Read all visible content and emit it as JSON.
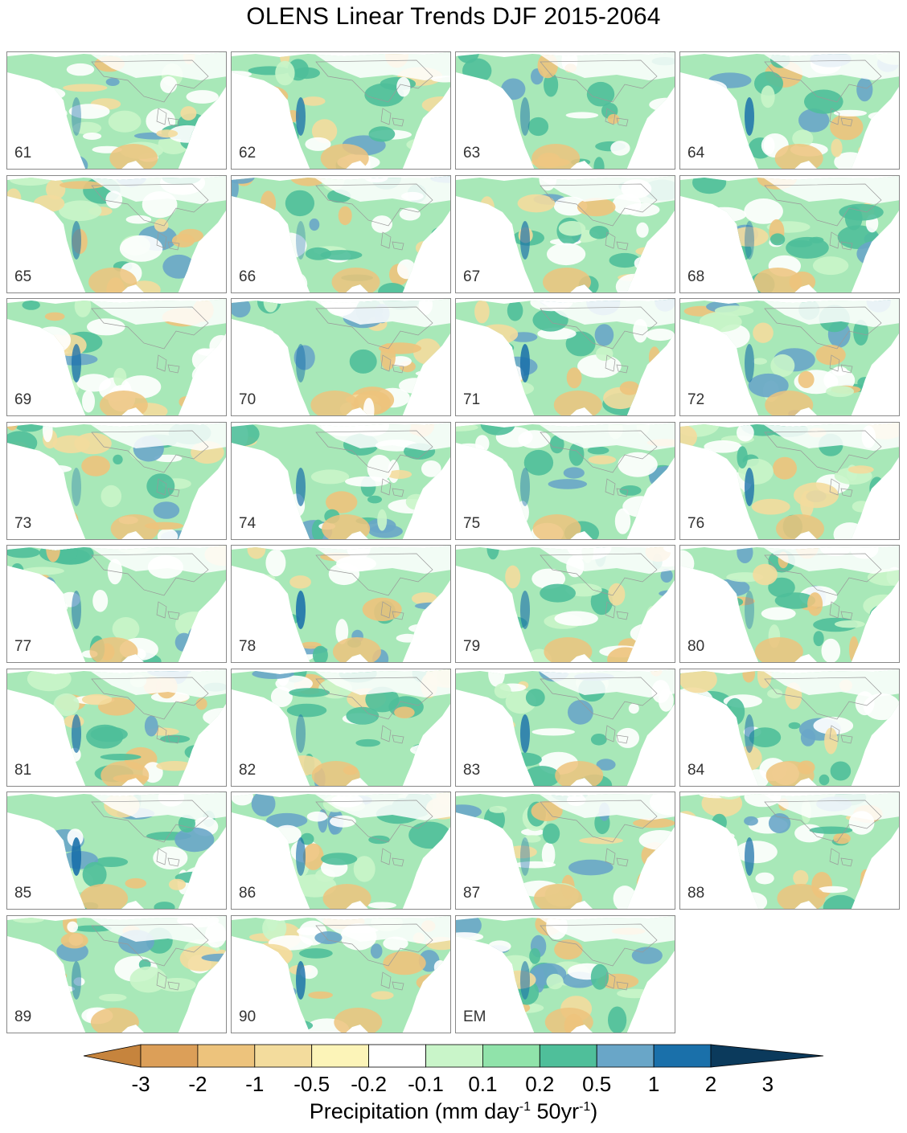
{
  "title": "OLENS Linear Trends DJF 2015-2064",
  "panels": [
    "61",
    "62",
    "63",
    "64",
    "65",
    "66",
    "67",
    "68",
    "69",
    "70",
    "71",
    "72",
    "73",
    "74",
    "75",
    "76",
    "77",
    "78",
    "79",
    "80",
    "81",
    "82",
    "83",
    "84",
    "85",
    "86",
    "87",
    "88",
    "89",
    "90",
    "EM"
  ],
  "colorbar": {
    "ticks": [
      "-3",
      "-2",
      "-1",
      "-0.5",
      "-0.2",
      "-0.1",
      "0.1",
      "0.2",
      "0.5",
      "1",
      "2",
      "3"
    ],
    "colors": [
      "#c6843d",
      "#dc9f58",
      "#edc37c",
      "#f3dc9d",
      "#fcf4b8",
      "#ffffff",
      "#c9f5c9",
      "#90e3aa",
      "#4fbf9a",
      "#69a6c8",
      "#1a70aa",
      "#0b3a5c"
    ],
    "label_text": "Precipitation (mm day",
    "label_sup1": "-1",
    "label_mid": " 50yr",
    "label_sup2": "-1",
    "label_end": ")"
  }
}
